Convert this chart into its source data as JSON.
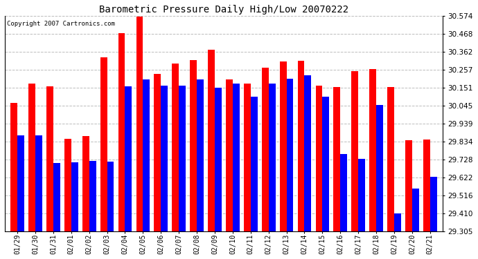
{
  "title": "Barometric Pressure Daily High/Low 20070222",
  "copyright": "Copyright 2007 Cartronics.com",
  "dates": [
    "01/29",
    "01/30",
    "01/31",
    "02/01",
    "02/02",
    "02/03",
    "02/04",
    "02/05",
    "02/06",
    "02/07",
    "02/08",
    "02/09",
    "02/10",
    "02/11",
    "02/12",
    "02/13",
    "02/14",
    "02/15",
    "02/16",
    "02/17",
    "02/18",
    "02/19",
    "02/20",
    "02/21"
  ],
  "highs": [
    30.06,
    30.175,
    30.16,
    29.85,
    29.865,
    30.33,
    30.475,
    30.57,
    30.235,
    30.295,
    30.315,
    30.375,
    30.2,
    30.175,
    30.27,
    30.305,
    30.31,
    30.165,
    30.155,
    30.25,
    30.26,
    30.155,
    29.84,
    29.845
  ],
  "lows": [
    29.87,
    29.87,
    29.705,
    29.71,
    29.72,
    29.715,
    30.16,
    30.2,
    30.165,
    30.165,
    30.2,
    30.15,
    30.175,
    30.1,
    30.175,
    30.205,
    30.225,
    30.1,
    29.76,
    29.73,
    30.05,
    29.41,
    29.555,
    29.625
  ],
  "ymin": 29.305,
  "ymax": 30.574,
  "yticks": [
    29.305,
    29.41,
    29.516,
    29.622,
    29.728,
    29.834,
    29.939,
    30.045,
    30.151,
    30.257,
    30.362,
    30.468,
    30.574
  ],
  "high_color": "#FF0000",
  "low_color": "#0000FF",
  "bg_color": "#FFFFFF",
  "grid_color": "#AAAAAA",
  "bar_width": 0.38
}
